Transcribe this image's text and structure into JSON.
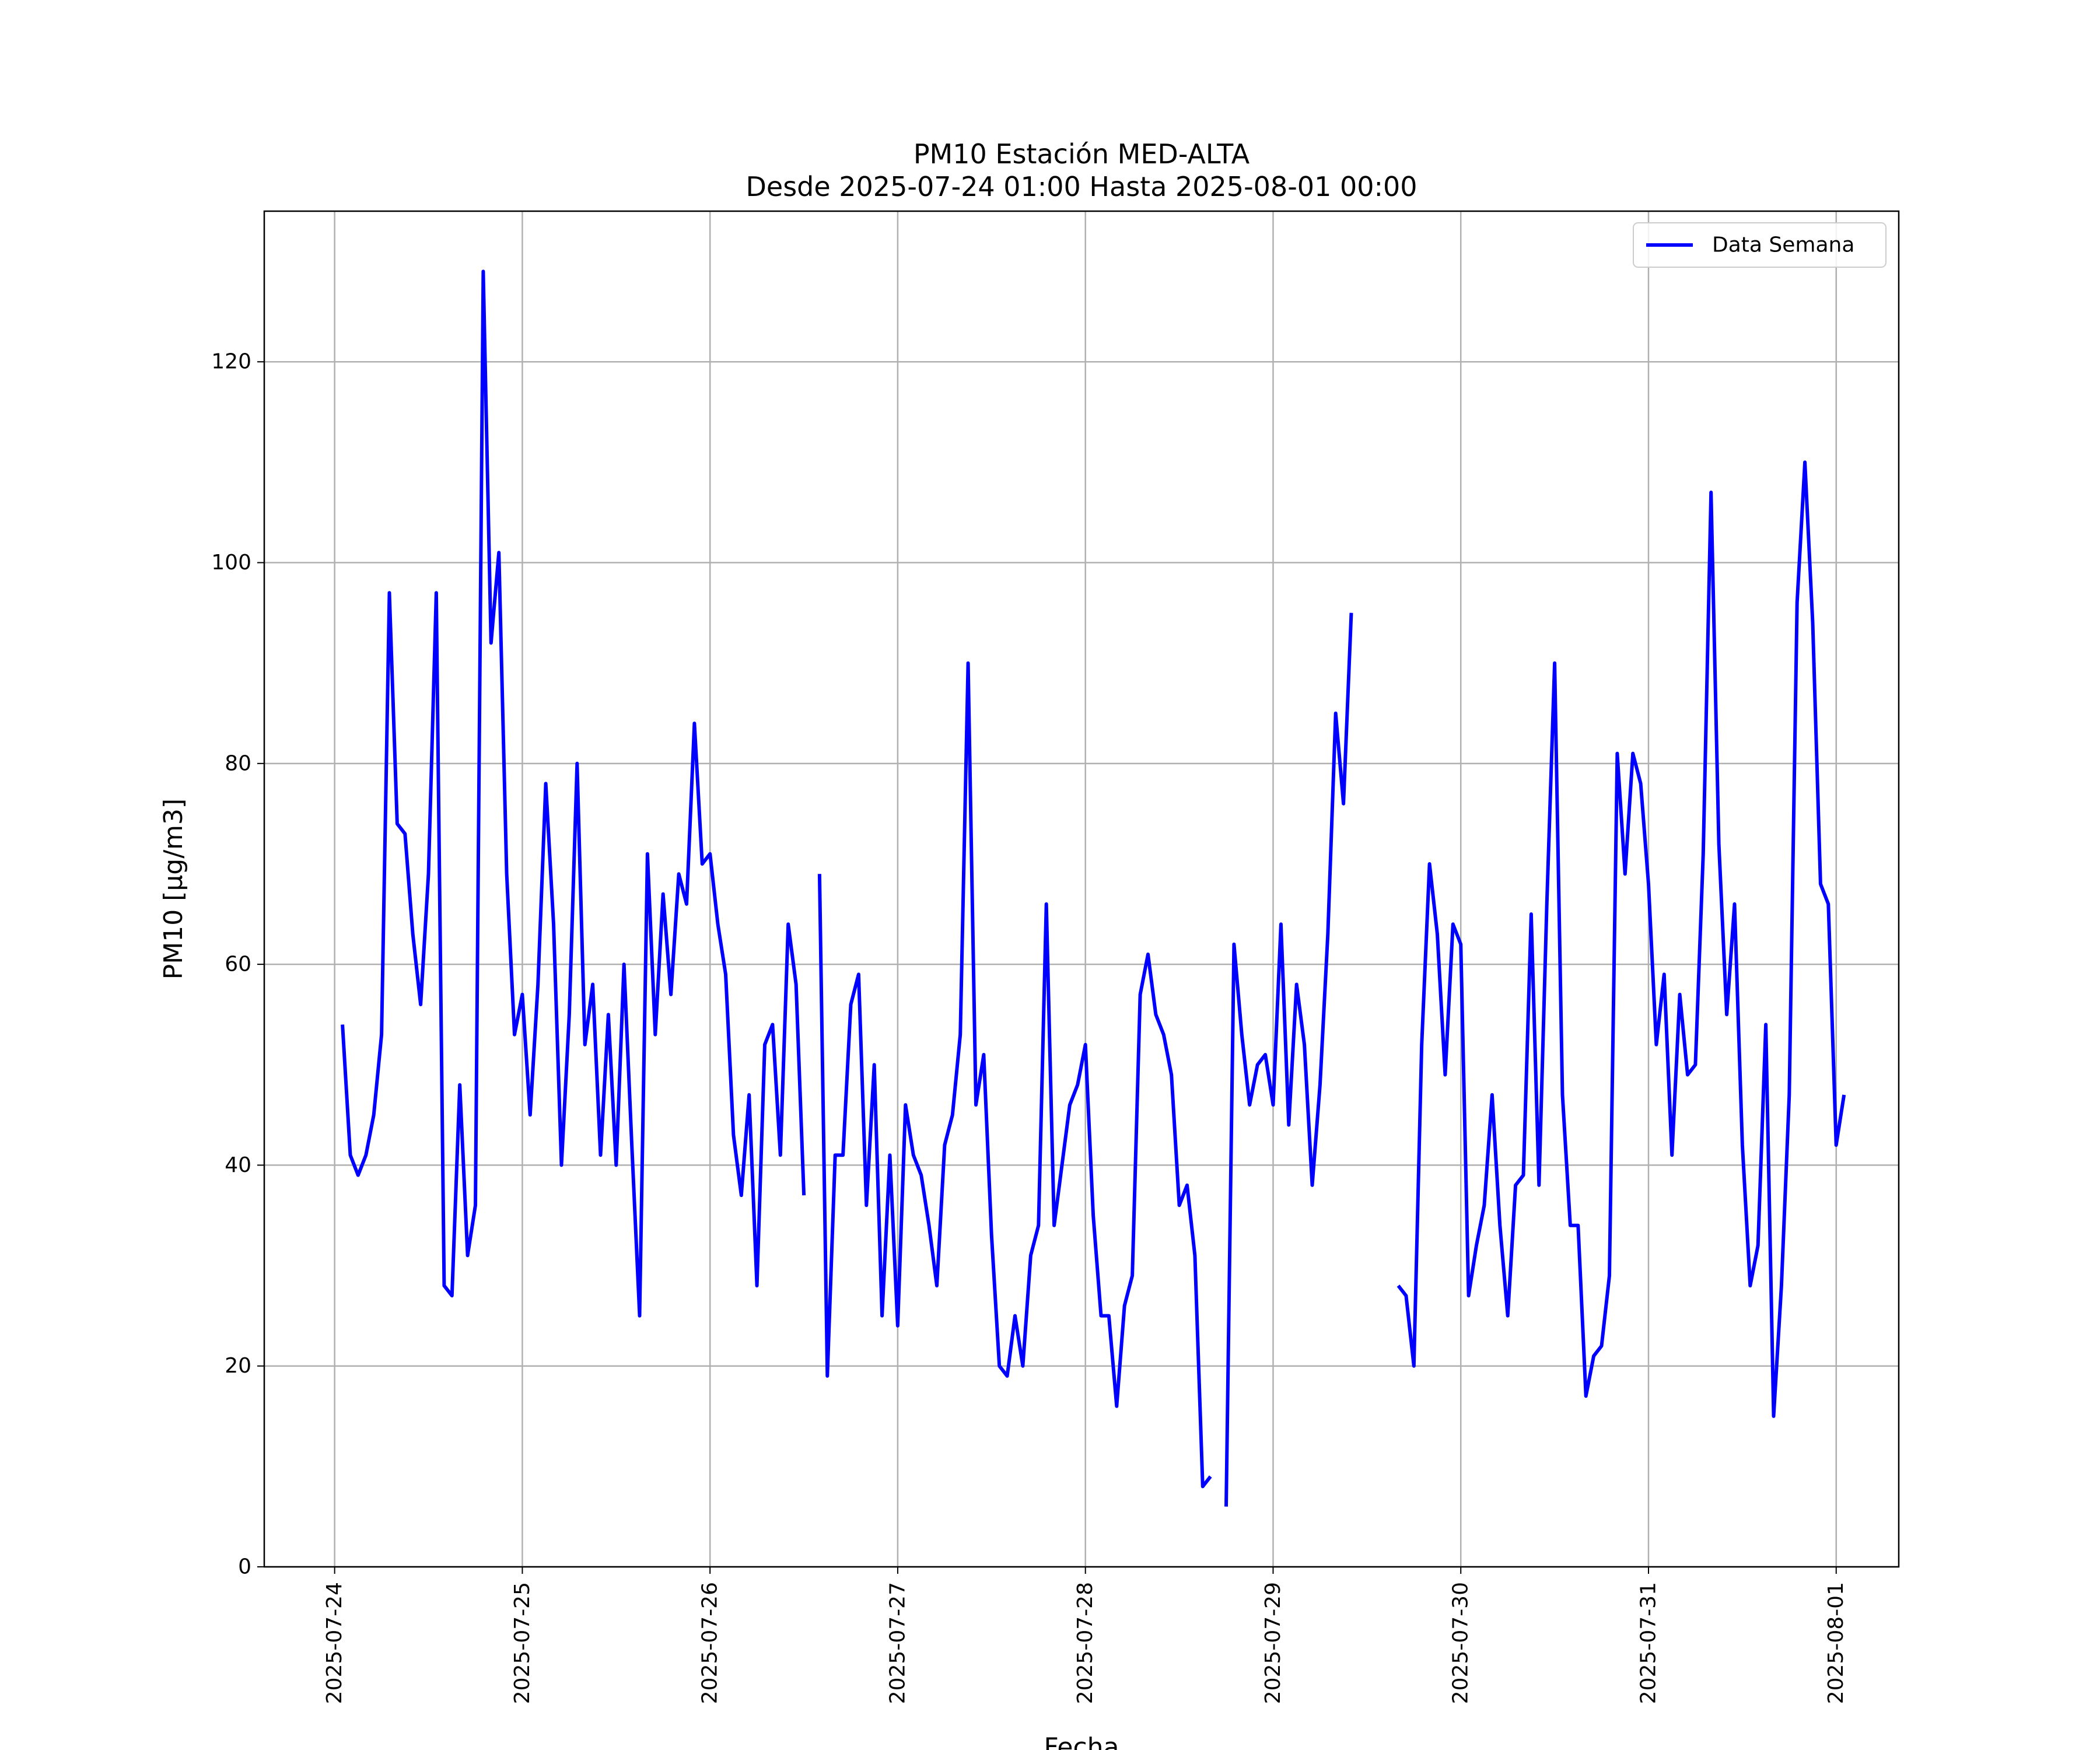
{
  "chart_data": {
    "type": "line",
    "title": "PM10 Estación MED-ALTA",
    "subtitle": "Desde 2025-07-24 01:00 Hasta 2025-08-01 00:00",
    "xlabel": "Fecha",
    "ylabel": "PM10 [μg/m3]",
    "xlim": [
      "2025-07-23T15:00",
      "2025-08-01T08:00"
    ],
    "ylim": [
      0,
      135
    ],
    "grid": true,
    "legend_placement": "top-right",
    "x_ticks": [
      "2025-07-24",
      "2025-07-25",
      "2025-07-26",
      "2025-07-27",
      "2025-07-28",
      "2025-07-29",
      "2025-07-30",
      "2025-07-31",
      "2025-08-01"
    ],
    "y_ticks": [
      "0",
      "20",
      "40",
      "60",
      "80",
      "100",
      "120"
    ],
    "series": [
      {
        "name": "Data Semana",
        "color": "#0000ff",
        "start": "2025-07-24T01:00",
        "interval_hours": 1,
        "values": [
          54,
          41,
          39,
          41,
          45,
          53,
          97,
          74,
          73,
          63,
          56,
          69,
          97,
          28,
          27,
          48,
          31,
          36,
          129,
          92,
          101,
          69,
          53,
          57,
          45,
          58,
          78,
          64,
          40,
          55,
          80,
          52,
          58,
          41,
          55,
          40,
          60,
          42,
          25,
          71,
          53,
          67,
          57,
          69,
          66,
          84,
          70,
          71,
          64,
          59,
          43,
          37,
          47,
          28,
          52,
          54,
          41,
          64,
          58,
          37,
          null,
          69,
          19,
          41,
          41,
          56,
          59,
          36,
          50,
          25,
          41,
          24,
          46,
          41,
          39,
          34,
          28,
          42,
          45,
          53,
          90,
          46,
          51,
          33,
          20,
          19,
          25,
          20,
          31,
          34,
          66,
          34,
          40,
          46,
          48,
          52,
          35,
          25,
          25,
          16,
          26,
          29,
          57,
          61,
          55,
          53,
          49,
          36,
          38,
          31,
          8,
          9,
          null,
          6,
          62,
          53,
          46,
          50,
          51,
          46,
          64,
          44,
          58,
          52,
          38,
          48,
          63,
          85,
          76,
          95,
          null,
          null,
          null,
          null,
          null,
          28,
          27,
          20,
          52,
          70,
          63,
          49,
          64,
          62,
          27,
          32,
          36,
          47,
          34,
          25,
          38,
          39,
          65,
          38,
          66,
          90,
          47,
          34,
          34,
          17,
          21,
          22,
          29,
          81,
          69,
          81,
          78,
          68,
          52,
          59,
          41,
          57,
          49,
          50,
          71,
          107,
          72,
          55,
          66,
          42,
          28,
          32,
          54,
          15,
          28,
          47,
          96,
          110,
          94,
          68,
          66,
          42,
          47
        ]
      }
    ]
  }
}
